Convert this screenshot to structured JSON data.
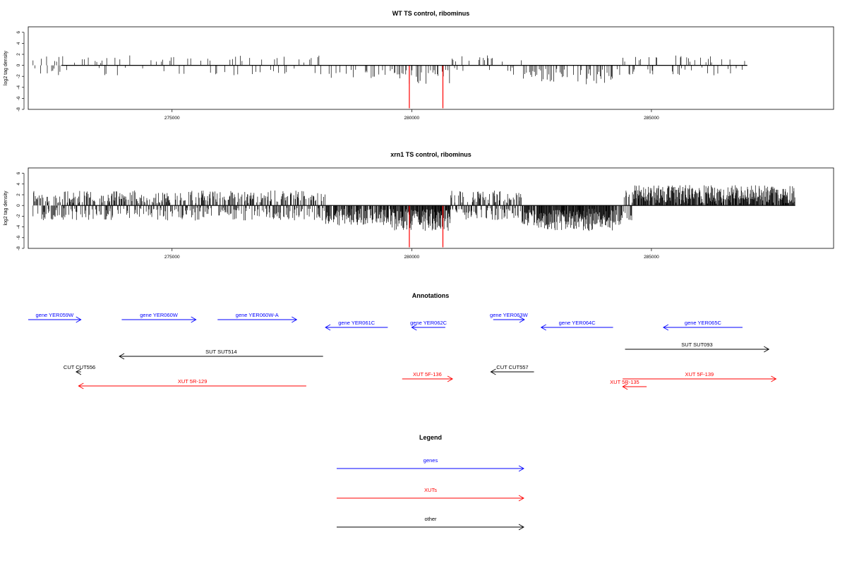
{
  "colors": {
    "gene": "#0000ff",
    "xut": "#ff0000",
    "other": "#000000",
    "signal": "#000000",
    "highlight": "#ff0000"
  },
  "chart_data": [
    {
      "type": "bar",
      "title": "WT TS control, ribominus",
      "ylabel": "log2 tag density",
      "xlim": [
        272000,
        288800
      ],
      "ylim": [
        -8,
        7
      ],
      "x_range": [
        272100,
        287000
      ],
      "yticks": [
        6,
        4,
        2,
        0,
        -2,
        -4,
        -6,
        -8
      ],
      "xticks": [
        275000,
        280000,
        285000
      ],
      "xtick_labels": [
        "275000",
        "280000",
        "285000"
      ],
      "highlight_red": [
        {
          "x": 279950,
          "y": -7.8
        },
        {
          "x": 280650,
          "y": -7.8
        }
      ],
      "seed": 11
    },
    {
      "type": "bar",
      "title": "xrn1 TS control, ribominus",
      "ylabel": "log2 tag density",
      "xlim": [
        272000,
        288800
      ],
      "ylim": [
        -8,
        7
      ],
      "x_range": [
        272100,
        288000
      ],
      "yticks": [
        6,
        4,
        2,
        0,
        -2,
        -4,
        -6,
        -8
      ],
      "xticks": [
        275000,
        280000,
        285000
      ],
      "xtick_labels": [
        "275000",
        "280000",
        "285000"
      ],
      "highlight_red": [
        {
          "x": 279950,
          "y": -7.8
        },
        {
          "x": 280650,
          "y": -7.8
        }
      ],
      "seed": 29
    }
  ],
  "annotations": {
    "title": "Annotations",
    "features": [
      {
        "label": "gene YER059W",
        "type": "gene",
        "from": 272000,
        "to": 273100,
        "row": 0
      },
      {
        "label": "gene YER060W",
        "type": "gene",
        "from": 273950,
        "to": 275500,
        "row": 0
      },
      {
        "label": "gene YER060W-A",
        "type": "gene",
        "from": 275950,
        "to": 277600,
        "row": 0
      },
      {
        "label": "gene YER061C",
        "type": "gene",
        "from": 279500,
        "to": 278200,
        "row": 1
      },
      {
        "label": "gene YER062C",
        "type": "gene",
        "from": 280700,
        "to": 280000,
        "row": 1
      },
      {
        "label": "gene YER063W",
        "type": "gene",
        "from": 281700,
        "to": 282350,
        "row": 0
      },
      {
        "label": "gene YER064C",
        "type": "gene",
        "from": 284200,
        "to": 282700,
        "row": 1
      },
      {
        "label": "gene YER065C",
        "type": "gene",
        "from": 286900,
        "to": 285250,
        "row": 1
      },
      {
        "label": "SUT SUT514",
        "type": "other",
        "from": 278150,
        "to": 273900,
        "row": 2
      },
      {
        "label": "SUT SUT093",
        "type": "other",
        "from": 284450,
        "to": 287450,
        "row": 3
      },
      {
        "label": "CUT CUT556",
        "type": "other",
        "from": 273100,
        "to": 273000,
        "row": 4
      },
      {
        "label": "CUT CUT557",
        "type": "other",
        "from": 282550,
        "to": 281650,
        "row": 4
      },
      {
        "label": "XUT 5R-129",
        "type": "xut",
        "from": 277800,
        "to": 273050,
        "row": 5
      },
      {
        "label": "XUT 5F-136",
        "type": "xut",
        "from": 279800,
        "to": 280850,
        "row": 6
      },
      {
        "label": "XUT 5F-139",
        "type": "xut",
        "from": 284400,
        "to": 287600,
        "row": 7
      },
      {
        "label": "XUT 5R-135",
        "type": "xut",
        "from": 284900,
        "to": 284400,
        "row": 8
      }
    ]
  },
  "legend": {
    "title": "Legend",
    "items": [
      {
        "label": "genes",
        "type": "gene"
      },
      {
        "label": "XUTs",
        "type": "xut"
      },
      {
        "label": "other",
        "type": "other"
      }
    ]
  }
}
